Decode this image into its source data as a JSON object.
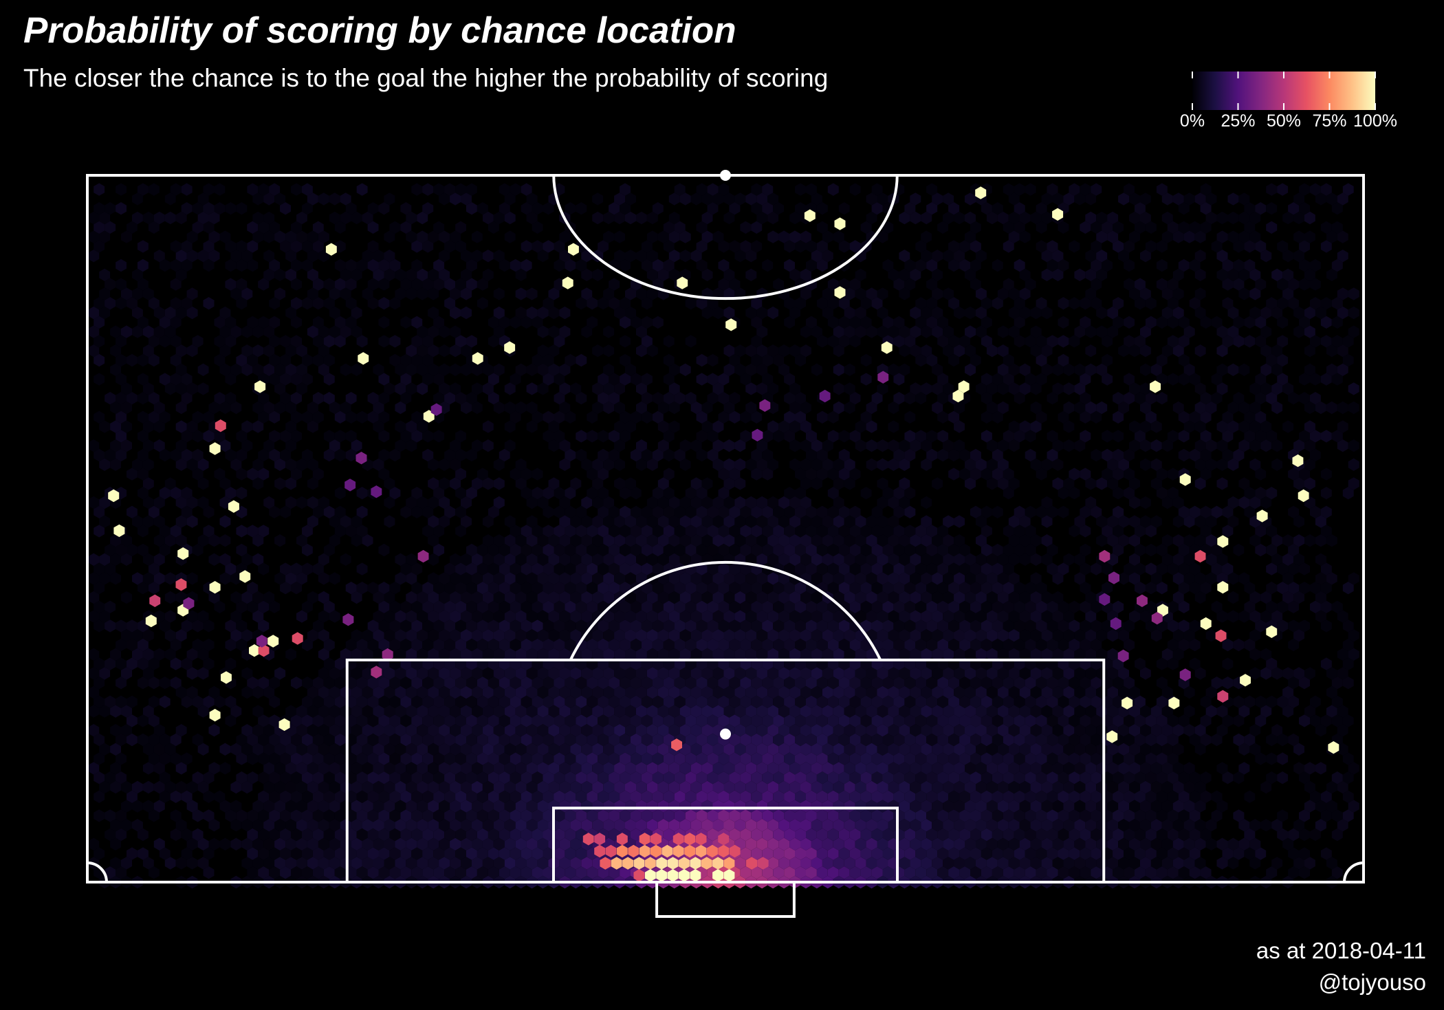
{
  "title": "Probability of scoring by chance location",
  "subtitle": "The closer the chance is to the goal the higher the probability of scoring",
  "caption_date": "as at 2018-04-11",
  "caption_handle": "@tojyouso",
  "colors": {
    "background": "#000000",
    "lines": "#ffffff",
    "scale": [
      "#000004",
      "#1c1044",
      "#51127c",
      "#832681",
      "#b73779",
      "#e75263",
      "#fc8961",
      "#fec287",
      "#fcfdbf"
    ]
  },
  "legend": {
    "ticks": [
      "0%",
      "25%",
      "50%",
      "75%",
      "100%"
    ],
    "tick_values": [
      0,
      0.25,
      0.5,
      0.75,
      1
    ]
  },
  "chart_data": {
    "type": "heatmap",
    "description_encoding": "hexbin; x = across pitch width (0-68 m, left touchline = 0), y = distance from goal line (0-52.5 m, halfway line = 52.5); value = probability of scoring (0-1)",
    "xlim": [
      0,
      68
    ],
    "ylim": [
      0,
      52.5
    ],
    "legend_placement": "top-right",
    "scatter_cells": [
      [
        13,
        47,
        1.0
      ],
      [
        25.9,
        47,
        1.0
      ],
      [
        25.6,
        44.5,
        1.0
      ],
      [
        31.7,
        44.5,
        1.0
      ],
      [
        38.5,
        49.5,
        1.0
      ],
      [
        40.1,
        48.9,
        1.0
      ],
      [
        40.1,
        43.8,
        1.0
      ],
      [
        34.3,
        41.4,
        1.0
      ],
      [
        47.6,
        51.2,
        1.0
      ],
      [
        51.7,
        49.6,
        1.0
      ],
      [
        42.6,
        39.7,
        1.0
      ],
      [
        14.7,
        38.9,
        1.0
      ],
      [
        20.8,
        38.9,
        1.0
      ],
      [
        22.5,
        39.7,
        1.0
      ],
      [
        9.2,
        36.8,
        1.0
      ],
      [
        46.7,
        36.8,
        1.0
      ],
      [
        46.4,
        36.1,
        1.0
      ],
      [
        56.9,
        36.8,
        1.0
      ],
      [
        18.2,
        34.6,
        1.0
      ],
      [
        1.4,
        28.7,
        1.0
      ],
      [
        1.7,
        26.1,
        1.0
      ],
      [
        6.8,
        32.2,
        1.0
      ],
      [
        7.8,
        27.9,
        1.0
      ],
      [
        5.1,
        24.4,
        1.0
      ],
      [
        6.8,
        21.9,
        1.0
      ],
      [
        8.4,
        22.7,
        1.0
      ],
      [
        3.4,
        19.4,
        1.0
      ],
      [
        5.1,
        20.2,
        1.0
      ],
      [
        8.9,
        17.2,
        1.0
      ],
      [
        9.9,
        17.9,
        1.0
      ],
      [
        7.4,
        15.2,
        1.0
      ],
      [
        6.8,
        12.4,
        1.0
      ],
      [
        10.5,
        11.7,
        1.0
      ],
      [
        64.5,
        31.3,
        1.0
      ],
      [
        64.8,
        28.7,
        1.0
      ],
      [
        58.5,
        29.9,
        1.0
      ],
      [
        62.6,
        27.2,
        1.0
      ],
      [
        60.5,
        25.3,
        1.0
      ],
      [
        60.5,
        21.9,
        1.0
      ],
      [
        57.3,
        20.2,
        1.0
      ],
      [
        63.1,
        18.6,
        1.0
      ],
      [
        59.6,
        19.2,
        1.0
      ],
      [
        61.7,
        15.0,
        1.0
      ],
      [
        57.9,
        13.3,
        1.0
      ],
      [
        55.4,
        13.3,
        1.0
      ],
      [
        54.6,
        10.8,
        1.0
      ],
      [
        66.4,
        10.0,
        1.0
      ],
      [
        7.1,
        33.9,
        0.6
      ],
      [
        5.0,
        22.1,
        0.6
      ],
      [
        9.4,
        17.2,
        0.6
      ],
      [
        11.2,
        18.1,
        0.6
      ],
      [
        54.2,
        24.2,
        0.45
      ],
      [
        59.3,
        24.2,
        0.6
      ],
      [
        60.4,
        18.3,
        0.6
      ],
      [
        60.5,
        13.8,
        0.55
      ],
      [
        13.9,
        19.5,
        0.35
      ],
      [
        16.0,
        16.9,
        0.4
      ],
      [
        15.4,
        15.6,
        0.45
      ],
      [
        17.9,
        24.2,
        0.4
      ],
      [
        14.6,
        31.5,
        0.35
      ],
      [
        9.3,
        17.9,
        0.35
      ],
      [
        5.4,
        20.7,
        0.35
      ],
      [
        3.6,
        20.9,
        0.55
      ],
      [
        18.6,
        35.1,
        0.3
      ],
      [
        42.4,
        37.5,
        0.35
      ],
      [
        36.1,
        35.4,
        0.35
      ],
      [
        39.3,
        36.1,
        0.3
      ],
      [
        35.7,
        33.2,
        0.3
      ],
      [
        54.7,
        22.6,
        0.35
      ],
      [
        56.2,
        20.9,
        0.4
      ],
      [
        55.2,
        16.8,
        0.35
      ],
      [
        54.8,
        19.2,
        0.3
      ],
      [
        57.0,
        19.6,
        0.4
      ],
      [
        54.2,
        21.0,
        0.3
      ],
      [
        58.5,
        15.4,
        0.35
      ],
      [
        14.0,
        29.5,
        0.3
      ],
      [
        15.4,
        29.0,
        0.3
      ]
    ],
    "hot_cells": [
      [
        30.0,
        0.5,
        1.0
      ],
      [
        30.6,
        0.5,
        1.0
      ],
      [
        31.2,
        0.5,
        1.0
      ],
      [
        31.8,
        0.5,
        1.0
      ],
      [
        32.4,
        0.5,
        1.0
      ],
      [
        33.6,
        0.5,
        1.0
      ],
      [
        34.2,
        0.5,
        1.0
      ],
      [
        29.4,
        0.5,
        0.6
      ],
      [
        28.2,
        1.4,
        0.85
      ],
      [
        28.8,
        1.4,
        0.85
      ],
      [
        29.4,
        1.4,
        0.9
      ],
      [
        30.0,
        1.4,
        0.85
      ],
      [
        30.6,
        1.4,
        0.95
      ],
      [
        31.2,
        1.4,
        0.95
      ],
      [
        31.8,
        1.4,
        0.9
      ],
      [
        32.4,
        1.4,
        0.95
      ],
      [
        33.0,
        1.4,
        0.85
      ],
      [
        33.6,
        1.4,
        0.9
      ],
      [
        34.2,
        1.4,
        0.8
      ],
      [
        27.6,
        1.4,
        0.65
      ],
      [
        35.4,
        1.4,
        0.6
      ],
      [
        36.0,
        1.4,
        0.55
      ],
      [
        28.5,
        2.3,
        0.75
      ],
      [
        29.1,
        2.3,
        0.7
      ],
      [
        29.7,
        2.3,
        0.8
      ],
      [
        30.3,
        2.3,
        0.75
      ],
      [
        30.9,
        2.3,
        0.85
      ],
      [
        31.5,
        2.3,
        0.8
      ],
      [
        32.1,
        2.3,
        0.75
      ],
      [
        32.7,
        2.3,
        0.8
      ],
      [
        33.3,
        2.3,
        0.7
      ],
      [
        33.9,
        2.3,
        0.65
      ],
      [
        27.3,
        2.3,
        0.6
      ],
      [
        27.9,
        2.3,
        0.6
      ],
      [
        34.5,
        2.3,
        0.6
      ],
      [
        26.7,
        3.2,
        0.6
      ],
      [
        27.3,
        3.2,
        0.55
      ],
      [
        28.5,
        3.2,
        0.6
      ],
      [
        29.7,
        3.2,
        0.65
      ],
      [
        30.3,
        3.2,
        0.6
      ],
      [
        31.5,
        3.2,
        0.6
      ],
      [
        32.1,
        3.2,
        0.65
      ],
      [
        32.7,
        3.2,
        0.6
      ],
      [
        33.9,
        3.2,
        0.55
      ],
      [
        31.4,
        10.2,
        0.65
      ]
    ]
  }
}
